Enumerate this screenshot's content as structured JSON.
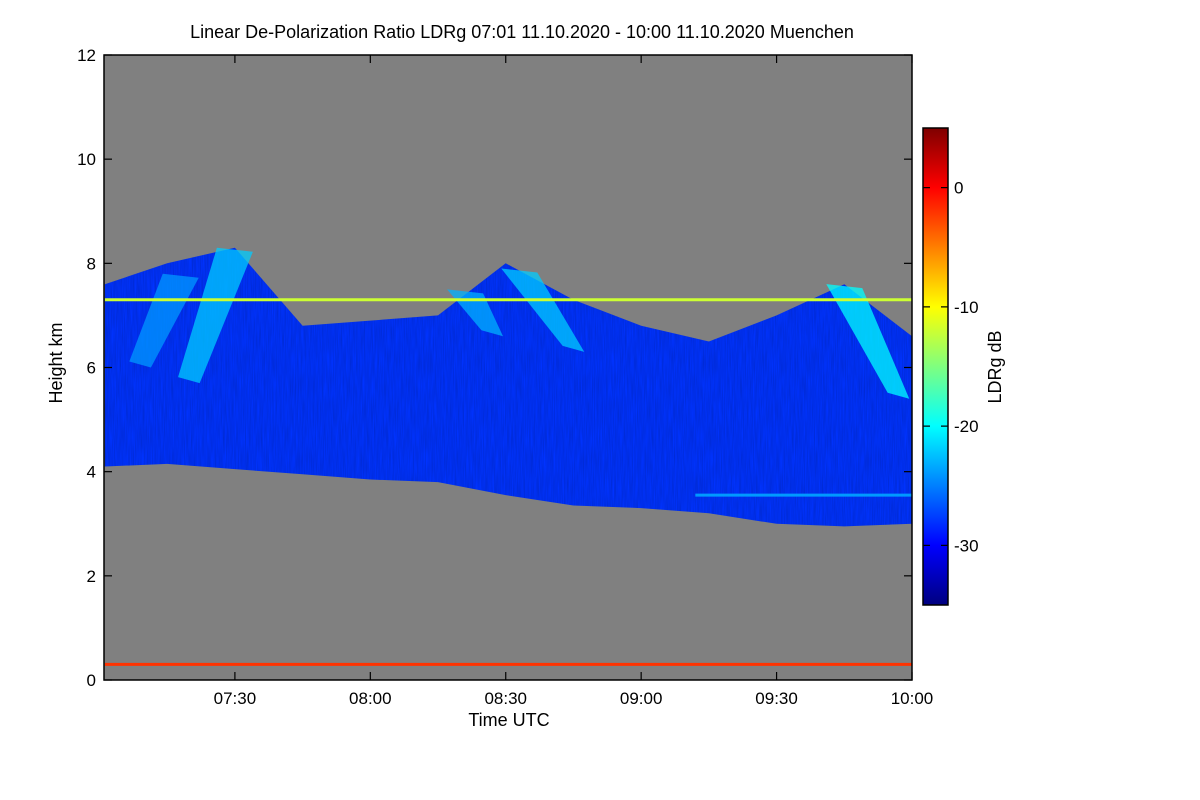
{
  "chart_data": {
    "type": "heatmap",
    "title": "Linear De-Polarization Ratio LDRg   07:01 11.10.2020 - 10:00 11.10.2020 Muenchen",
    "xlabel": "Time UTC",
    "ylabel": "Height km",
    "x_unit": "hours UTC",
    "xlim": [
      7.0167,
      10.0
    ],
    "ylim": [
      0,
      12
    ],
    "x_ticks": [
      {
        "value": 7.5,
        "label": "07:30"
      },
      {
        "value": 8.0,
        "label": "08:00"
      },
      {
        "value": 8.5,
        "label": "08:30"
      },
      {
        "value": 9.0,
        "label": "09:00"
      },
      {
        "value": 9.5,
        "label": "09:30"
      },
      {
        "value": 10.0,
        "label": "10:00"
      }
    ],
    "y_ticks": [
      {
        "value": 0,
        "label": "0"
      },
      {
        "value": 2,
        "label": "2"
      },
      {
        "value": 4,
        "label": "4"
      },
      {
        "value": 6,
        "label": "6"
      },
      {
        "value": 8,
        "label": "8"
      },
      {
        "value": 10,
        "label": "10"
      },
      {
        "value": 12,
        "label": "12"
      }
    ],
    "colorbar": {
      "label": "LDRg dB",
      "range": [
        -35,
        5
      ],
      "ticks": [
        {
          "value": 0,
          "label": "0"
        },
        {
          "value": -10,
          "label": "-10"
        },
        {
          "value": -20,
          "label": "-20"
        },
        {
          "value": -30,
          "label": "-30"
        }
      ],
      "colormap": [
        "#00007f",
        "#0000ff",
        "#007fff",
        "#00ffff",
        "#7fff7f",
        "#ffff00",
        "#ff7f00",
        "#ff0000",
        "#7f0000"
      ]
    },
    "no_data_color": "#808080",
    "cloud_layer": {
      "description_values_ldr_db": -28,
      "time": [
        7.02,
        7.25,
        7.5,
        7.75,
        8.0,
        8.25,
        8.5,
        8.75,
        9.0,
        9.25,
        9.5,
        9.75,
        10.0
      ],
      "base_km": [
        4.1,
        4.15,
        4.05,
        3.95,
        3.85,
        3.8,
        3.55,
        3.35,
        3.3,
        3.2,
        3.0,
        2.95,
        3.0
      ],
      "top_km": [
        7.6,
        8.0,
        8.3,
        6.8,
        6.9,
        7.0,
        8.0,
        7.3,
        6.8,
        6.5,
        7.0,
        7.6,
        6.6
      ]
    },
    "fall_streaks": [
      {
        "t_top": 7.5,
        "h_top": 8.3,
        "t_bot": 7.33,
        "h_bot": 5.7,
        "ldr_db": -22
      },
      {
        "t_top": 7.3,
        "h_top": 7.8,
        "t_bot": 7.15,
        "h_bot": 6.0,
        "ldr_db": -24
      },
      {
        "t_top": 8.55,
        "h_top": 7.9,
        "t_bot": 8.75,
        "h_bot": 6.3,
        "ldr_db": -22
      },
      {
        "t_top": 8.35,
        "h_top": 7.5,
        "t_bot": 8.45,
        "h_bot": 6.6,
        "ldr_db": -23
      },
      {
        "t_top": 9.75,
        "h_top": 7.6,
        "t_bot": 9.95,
        "h_bot": 5.4,
        "ldr_db": -20
      }
    ],
    "artifact_lines": [
      {
        "height_km": 7.3,
        "t_start": 7.02,
        "t_end": 10.0,
        "ldr_db": -12
      },
      {
        "height_km": 0.3,
        "t_start": 7.02,
        "t_end": 10.0,
        "ldr_db": -2
      },
      {
        "height_km": 3.55,
        "t_start": 9.2,
        "t_end": 10.0,
        "ldr_db": -24
      }
    ]
  }
}
